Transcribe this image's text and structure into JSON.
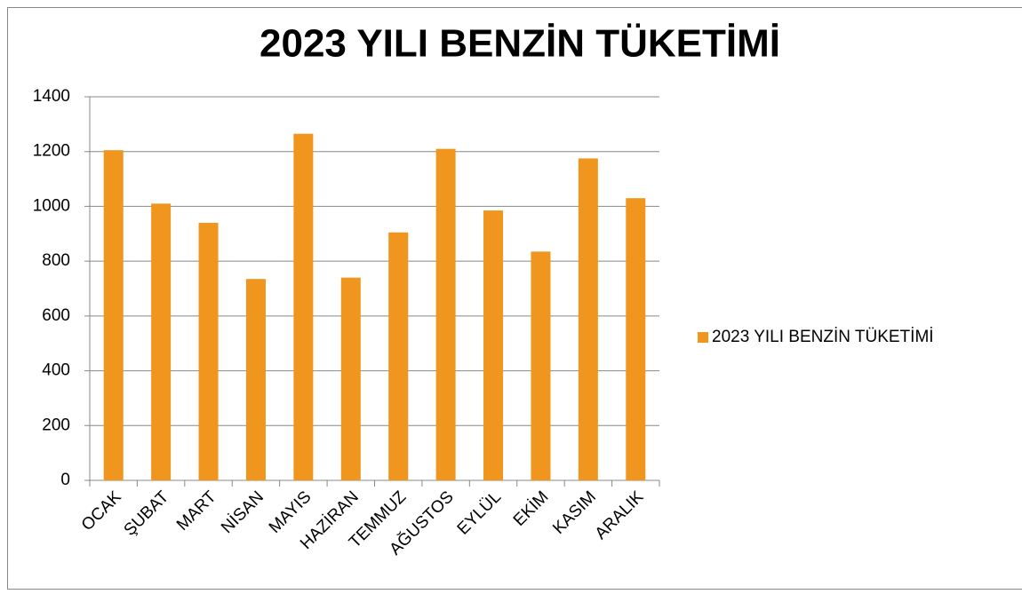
{
  "chart_data": {
    "type": "bar",
    "title": "2023 YILI BENZİN TÜKETİMİ",
    "categories": [
      "OCAK",
      "ŞUBAT",
      "MART",
      "NİSAN",
      "MAYIS",
      "HAZİRAN",
      "TEMMUZ",
      "AĞUSTOS",
      "EYLÜL",
      "EKİM",
      "KASIM",
      "ARALIK"
    ],
    "series": [
      {
        "name": "2023 YILI BENZİN TÜKETİMİ",
        "color": "#f0961e",
        "values": [
          1205,
          1010,
          940,
          735,
          1265,
          740,
          905,
          1210,
          985,
          835,
          1175,
          1030
        ]
      }
    ],
    "ylim": [
      0,
      1400
    ],
    "yticks": [
      0,
      200,
      400,
      600,
      800,
      1000,
      1200,
      1400
    ],
    "grid": true,
    "legend": "right"
  }
}
